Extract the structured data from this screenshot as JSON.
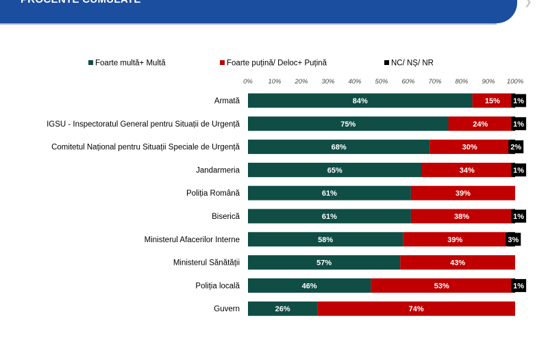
{
  "header": {
    "title": "PROCENTE CUMULATE"
  },
  "chart_data": {
    "type": "bar",
    "orientation": "horizontal",
    "stacked": true,
    "title": "",
    "xlabel": "",
    "ylabel": "",
    "xlim": [
      0,
      100
    ],
    "x_ticks": [
      "0%",
      "10%",
      "20%",
      "30%",
      "40%",
      "50%",
      "60%",
      "70%",
      "80%",
      "90%",
      "100%"
    ],
    "legend_position": "top",
    "categories": [
      "Armată",
      "IGSU - Inspectoratul General pentru Situații de Urgență",
      "Comitetul Național pentru Situații Speciale de Urgență",
      "Jandarmeria",
      "Poliția Română",
      "Biserică",
      "Ministerul Afacerilor Interne",
      "Ministerul Sănătății",
      "Poliția locală",
      "Guvern"
    ],
    "series": [
      {
        "name": "Foarte multă+ Multă",
        "color": "#0f4d45",
        "values": [
          84,
          75,
          68,
          65,
          61,
          61,
          58,
          57,
          46,
          26
        ],
        "labels": [
          "84%",
          "75%",
          "68%",
          "65%",
          "61%",
          "61%",
          "58%",
          "57%",
          "46%",
          "26%"
        ]
      },
      {
        "name": "Foarte puțină/ Deloc+ Puțină",
        "color": "#c00000",
        "values": [
          15,
          24,
          30,
          34,
          39,
          38,
          39,
          43,
          53,
          74
        ],
        "labels": [
          "15%",
          "24%",
          "30%",
          "34%",
          "39%",
          "38%",
          "39%",
          "43%",
          "53%",
          "74%"
        ]
      },
      {
        "name": "NC/ NȘ/ NR",
        "color": "#000000",
        "values": [
          1,
          1,
          2,
          1,
          0,
          1,
          3,
          0,
          1,
          0
        ],
        "labels": [
          "1%",
          "1%",
          "2%",
          "1%",
          "",
          "1%",
          "3%",
          "",
          "1%",
          ""
        ]
      }
    ]
  }
}
